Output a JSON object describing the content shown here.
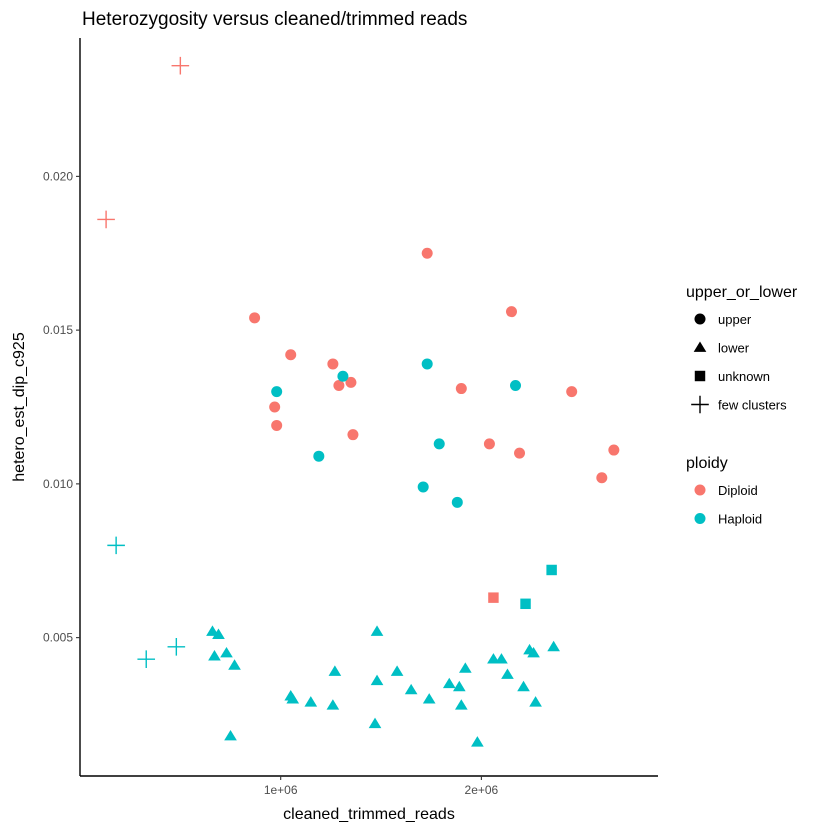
{
  "chart_data": {
    "type": "scatter",
    "title": "Heterozygosity versus cleaned/trimmed reads",
    "xlabel": "cleaned_trimmed_reads",
    "ylabel": "hetero_est_dip_c925",
    "xlim": [
      0,
      2880000
    ],
    "ylim": [
      0.0005,
      0.0245
    ],
    "x_ticks": [
      {
        "value": 1000000,
        "label": "1e+06"
      },
      {
        "value": 2000000,
        "label": "2e+06"
      }
    ],
    "y_ticks": [
      {
        "value": 0.005,
        "label": "0.005"
      },
      {
        "value": 0.01,
        "label": "0.010"
      },
      {
        "value": 0.015,
        "label": "0.015"
      },
      {
        "value": 0.02,
        "label": "0.020"
      }
    ],
    "grid": false,
    "legend_position": "right",
    "legends": [
      {
        "title": "upper_or_lower",
        "entries": [
          {
            "label": "upper",
            "shape": "circle"
          },
          {
            "label": "lower",
            "shape": "triangle"
          },
          {
            "label": "unknown",
            "shape": "square"
          },
          {
            "label": "few clusters",
            "shape": "plus"
          }
        ]
      },
      {
        "title": "ploidy",
        "entries": [
          {
            "label": "Diploid",
            "color": "#F8766D"
          },
          {
            "label": "Haploid",
            "color": "#00BFC4"
          }
        ]
      }
    ],
    "colors": {
      "Diploid": "#F8766D",
      "Haploid": "#00BFC4"
    },
    "points": [
      {
        "x": 500000,
        "y": 0.0236,
        "ploidy": "Diploid",
        "shape": "plus"
      },
      {
        "x": 130000,
        "y": 0.0186,
        "ploidy": "Diploid",
        "shape": "plus"
      },
      {
        "x": 180000,
        "y": 0.008,
        "ploidy": "Haploid",
        "shape": "plus"
      },
      {
        "x": 330000,
        "y": 0.0043,
        "ploidy": "Haploid",
        "shape": "plus"
      },
      {
        "x": 480000,
        "y": 0.0047,
        "ploidy": "Haploid",
        "shape": "plus"
      },
      {
        "x": 870000,
        "y": 0.0154,
        "ploidy": "Diploid",
        "shape": "circle"
      },
      {
        "x": 1050000,
        "y": 0.0142,
        "ploidy": "Diploid",
        "shape": "circle"
      },
      {
        "x": 970000,
        "y": 0.0125,
        "ploidy": "Diploid",
        "shape": "circle"
      },
      {
        "x": 980000,
        "y": 0.0119,
        "ploidy": "Diploid",
        "shape": "circle"
      },
      {
        "x": 1260000,
        "y": 0.0139,
        "ploidy": "Diploid",
        "shape": "circle"
      },
      {
        "x": 1290000,
        "y": 0.0132,
        "ploidy": "Diploid",
        "shape": "circle"
      },
      {
        "x": 1350000,
        "y": 0.0133,
        "ploidy": "Diploid",
        "shape": "circle"
      },
      {
        "x": 1360000,
        "y": 0.0116,
        "ploidy": "Diploid",
        "shape": "circle"
      },
      {
        "x": 1730000,
        "y": 0.0175,
        "ploidy": "Diploid",
        "shape": "circle"
      },
      {
        "x": 1900000,
        "y": 0.0131,
        "ploidy": "Diploid",
        "shape": "circle"
      },
      {
        "x": 2150000,
        "y": 0.0156,
        "ploidy": "Diploid",
        "shape": "circle"
      },
      {
        "x": 2040000,
        "y": 0.0113,
        "ploidy": "Diploid",
        "shape": "circle"
      },
      {
        "x": 2190000,
        "y": 0.011,
        "ploidy": "Diploid",
        "shape": "circle"
      },
      {
        "x": 2450000,
        "y": 0.013,
        "ploidy": "Diploid",
        "shape": "circle"
      },
      {
        "x": 2600000,
        "y": 0.0102,
        "ploidy": "Diploid",
        "shape": "circle"
      },
      {
        "x": 2660000,
        "y": 0.0111,
        "ploidy": "Diploid",
        "shape": "circle"
      },
      {
        "x": 980000,
        "y": 0.013,
        "ploidy": "Haploid",
        "shape": "circle"
      },
      {
        "x": 1310000,
        "y": 0.0135,
        "ploidy": "Haploid",
        "shape": "circle"
      },
      {
        "x": 1190000,
        "y": 0.0109,
        "ploidy": "Haploid",
        "shape": "circle"
      },
      {
        "x": 1730000,
        "y": 0.0139,
        "ploidy": "Haploid",
        "shape": "circle"
      },
      {
        "x": 1790000,
        "y": 0.0113,
        "ploidy": "Haploid",
        "shape": "circle"
      },
      {
        "x": 1710000,
        "y": 0.0099,
        "ploidy": "Haploid",
        "shape": "circle"
      },
      {
        "x": 1880000,
        "y": 0.0094,
        "ploidy": "Haploid",
        "shape": "circle"
      },
      {
        "x": 2170000,
        "y": 0.0132,
        "ploidy": "Haploid",
        "shape": "circle"
      },
      {
        "x": 2060000,
        "y": 0.0063,
        "ploidy": "Diploid",
        "shape": "square"
      },
      {
        "x": 2350000,
        "y": 0.0072,
        "ploidy": "Haploid",
        "shape": "square"
      },
      {
        "x": 2220000,
        "y": 0.0061,
        "ploidy": "Haploid",
        "shape": "square"
      },
      {
        "x": 660000,
        "y": 0.0052,
        "ploidy": "Haploid",
        "shape": "triangle"
      },
      {
        "x": 690000,
        "y": 0.0051,
        "ploidy": "Haploid",
        "shape": "triangle"
      },
      {
        "x": 670000,
        "y": 0.0044,
        "ploidy": "Haploid",
        "shape": "triangle"
      },
      {
        "x": 730000,
        "y": 0.0045,
        "ploidy": "Haploid",
        "shape": "triangle"
      },
      {
        "x": 770000,
        "y": 0.0041,
        "ploidy": "Haploid",
        "shape": "triangle"
      },
      {
        "x": 750000,
        "y": 0.0018,
        "ploidy": "Haploid",
        "shape": "triangle"
      },
      {
        "x": 1050000,
        "y": 0.0031,
        "ploidy": "Haploid",
        "shape": "triangle"
      },
      {
        "x": 1060000,
        "y": 0.003,
        "ploidy": "Haploid",
        "shape": "triangle"
      },
      {
        "x": 1150000,
        "y": 0.0029,
        "ploidy": "Haploid",
        "shape": "triangle"
      },
      {
        "x": 1270000,
        "y": 0.0039,
        "ploidy": "Haploid",
        "shape": "triangle"
      },
      {
        "x": 1260000,
        "y": 0.0028,
        "ploidy": "Haploid",
        "shape": "triangle"
      },
      {
        "x": 1480000,
        "y": 0.0052,
        "ploidy": "Haploid",
        "shape": "triangle"
      },
      {
        "x": 1480000,
        "y": 0.0036,
        "ploidy": "Haploid",
        "shape": "triangle"
      },
      {
        "x": 1470000,
        "y": 0.0022,
        "ploidy": "Haploid",
        "shape": "triangle"
      },
      {
        "x": 1580000,
        "y": 0.0039,
        "ploidy": "Haploid",
        "shape": "triangle"
      },
      {
        "x": 1650000,
        "y": 0.0033,
        "ploidy": "Haploid",
        "shape": "triangle"
      },
      {
        "x": 1740000,
        "y": 0.003,
        "ploidy": "Haploid",
        "shape": "triangle"
      },
      {
        "x": 1840000,
        "y": 0.0035,
        "ploidy": "Haploid",
        "shape": "triangle"
      },
      {
        "x": 1890000,
        "y": 0.0034,
        "ploidy": "Haploid",
        "shape": "triangle"
      },
      {
        "x": 1900000,
        "y": 0.0028,
        "ploidy": "Haploid",
        "shape": "triangle"
      },
      {
        "x": 1920000,
        "y": 0.004,
        "ploidy": "Haploid",
        "shape": "triangle"
      },
      {
        "x": 1980000,
        "y": 0.0016,
        "ploidy": "Haploid",
        "shape": "triangle"
      },
      {
        "x": 2060000,
        "y": 0.0043,
        "ploidy": "Haploid",
        "shape": "triangle"
      },
      {
        "x": 2100000,
        "y": 0.0043,
        "ploidy": "Haploid",
        "shape": "triangle"
      },
      {
        "x": 2130000,
        "y": 0.0038,
        "ploidy": "Haploid",
        "shape": "triangle"
      },
      {
        "x": 2210000,
        "y": 0.0034,
        "ploidy": "Haploid",
        "shape": "triangle"
      },
      {
        "x": 2240000,
        "y": 0.0046,
        "ploidy": "Haploid",
        "shape": "triangle"
      },
      {
        "x": 2260000,
        "y": 0.0045,
        "ploidy": "Haploid",
        "shape": "triangle"
      },
      {
        "x": 2270000,
        "y": 0.0029,
        "ploidy": "Haploid",
        "shape": "triangle"
      },
      {
        "x": 2360000,
        "y": 0.0047,
        "ploidy": "Haploid",
        "shape": "triangle"
      }
    ]
  }
}
